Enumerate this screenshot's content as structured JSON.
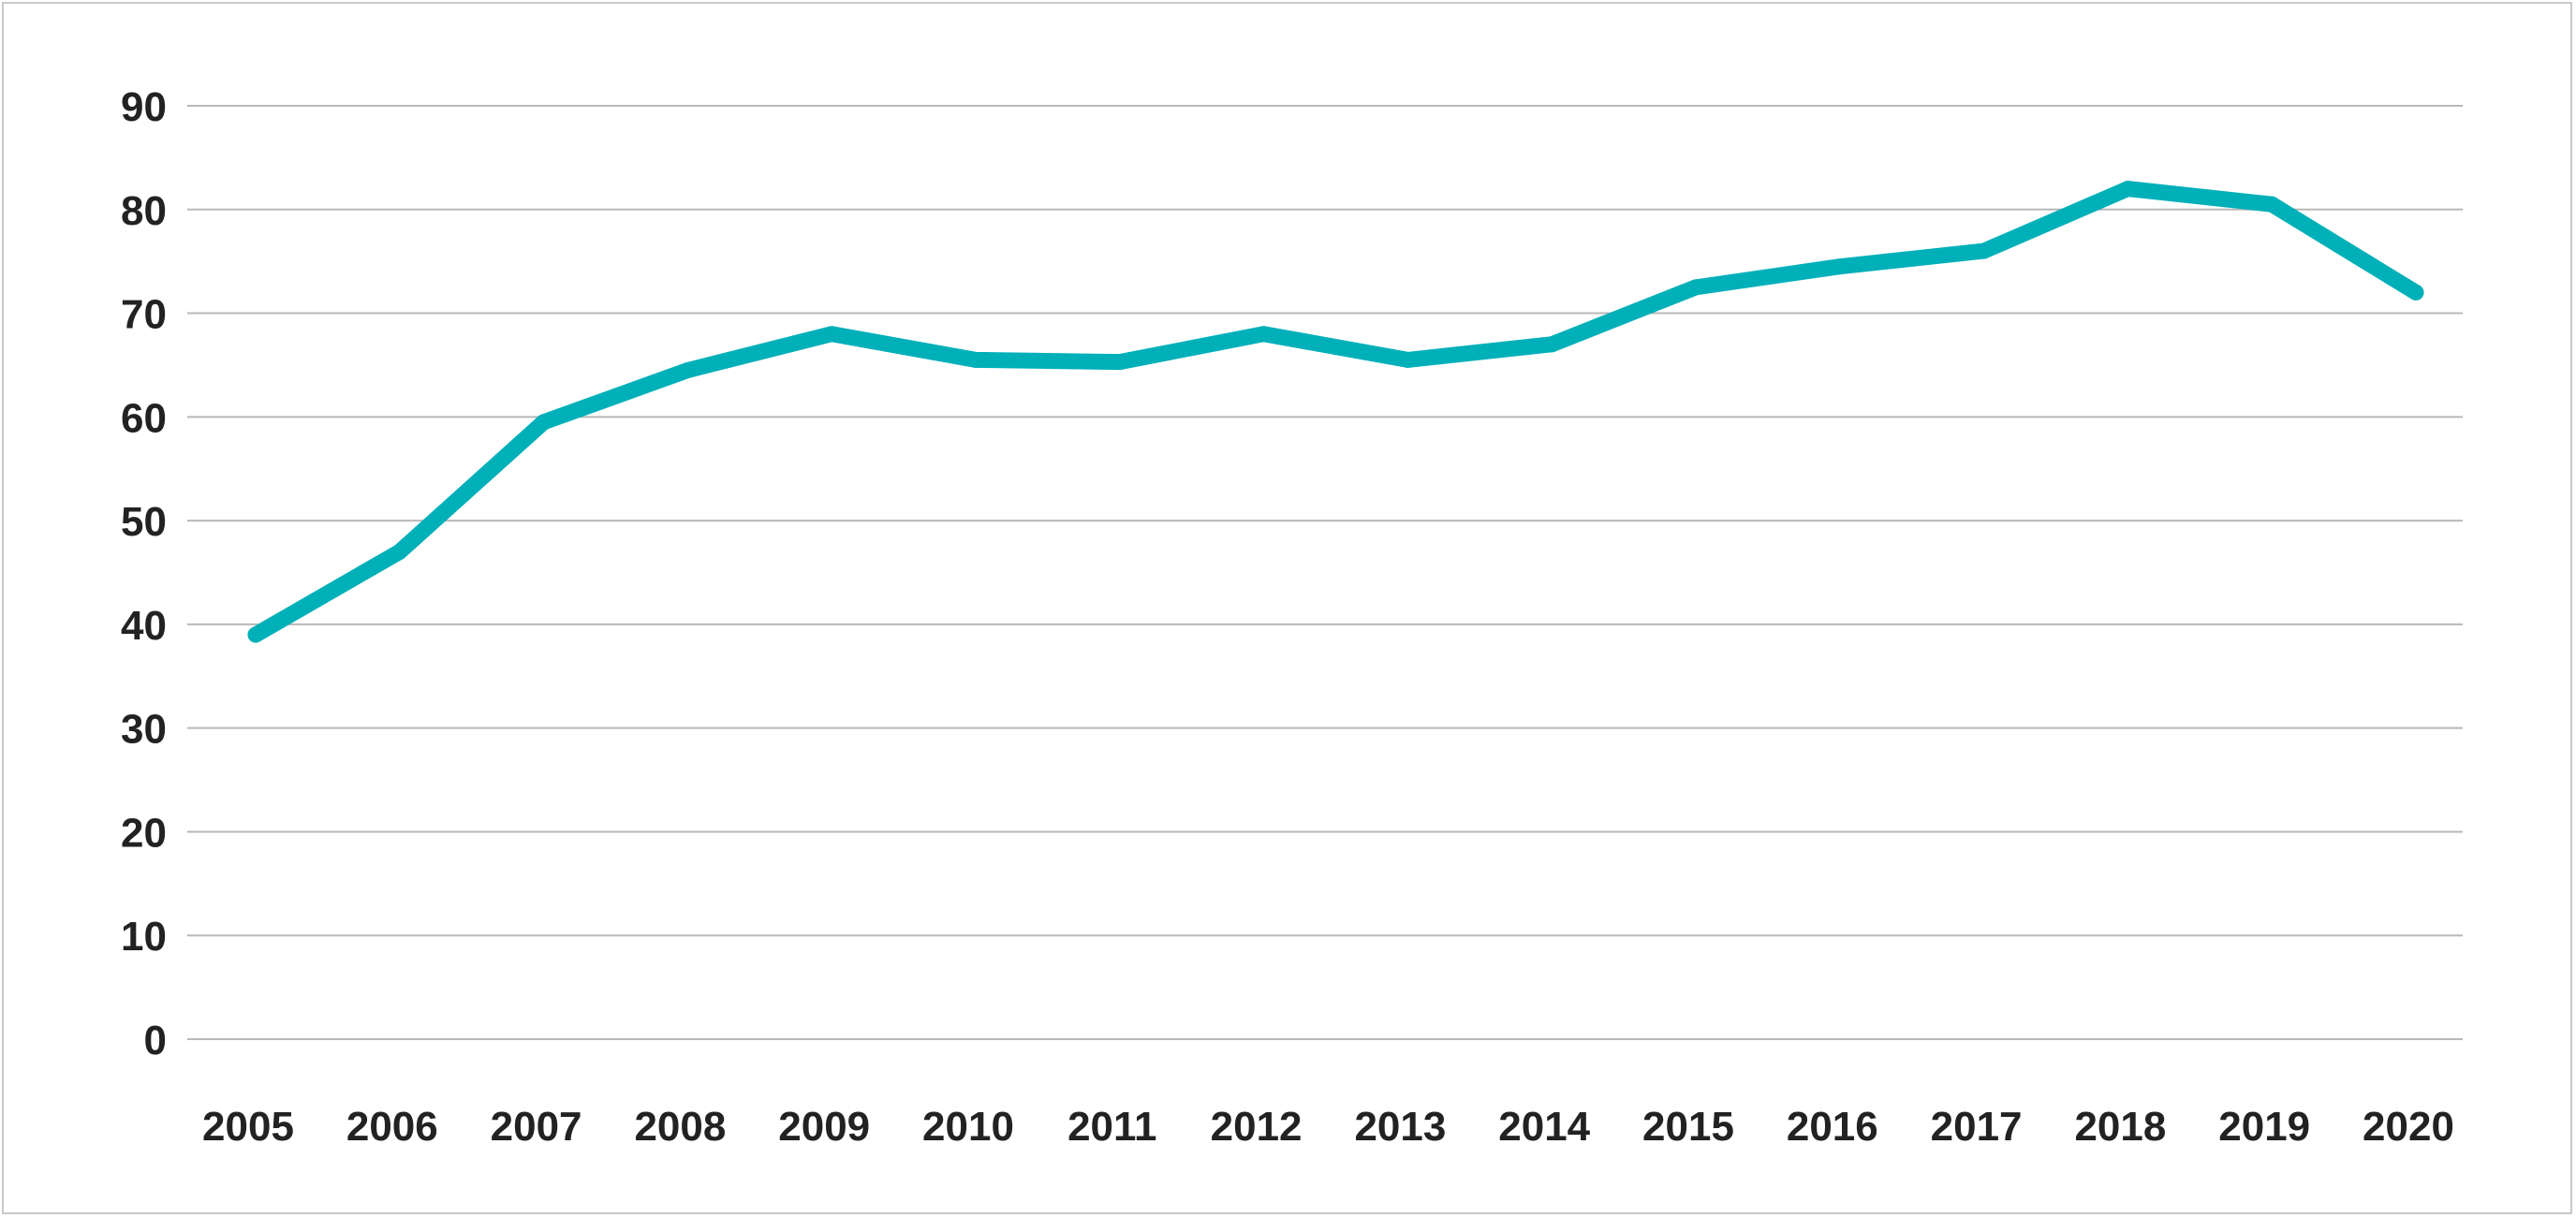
{
  "chart_data": {
    "type": "line",
    "title": "",
    "xlabel": "",
    "ylabel": "",
    "categories": [
      "2005",
      "2006",
      "2007",
      "2008",
      "2009",
      "2010",
      "2011",
      "2012",
      "2013",
      "2014",
      "2015",
      "2016",
      "2017",
      "2018",
      "2019",
      "2020"
    ],
    "series": [
      {
        "name": "",
        "color": "#00b0b9",
        "values": [
          39,
          47,
          59.5,
          64.5,
          68,
          65.5,
          65.3,
          68,
          65.5,
          67,
          72.5,
          74.5,
          76,
          82,
          80.5,
          72
        ]
      }
    ],
    "yticks": [
      "0",
      "10",
      "20",
      "30",
      "40",
      "50",
      "60",
      "70",
      "80",
      "90"
    ],
    "ylim": [
      0,
      90
    ],
    "grid": true,
    "legend": "none"
  }
}
